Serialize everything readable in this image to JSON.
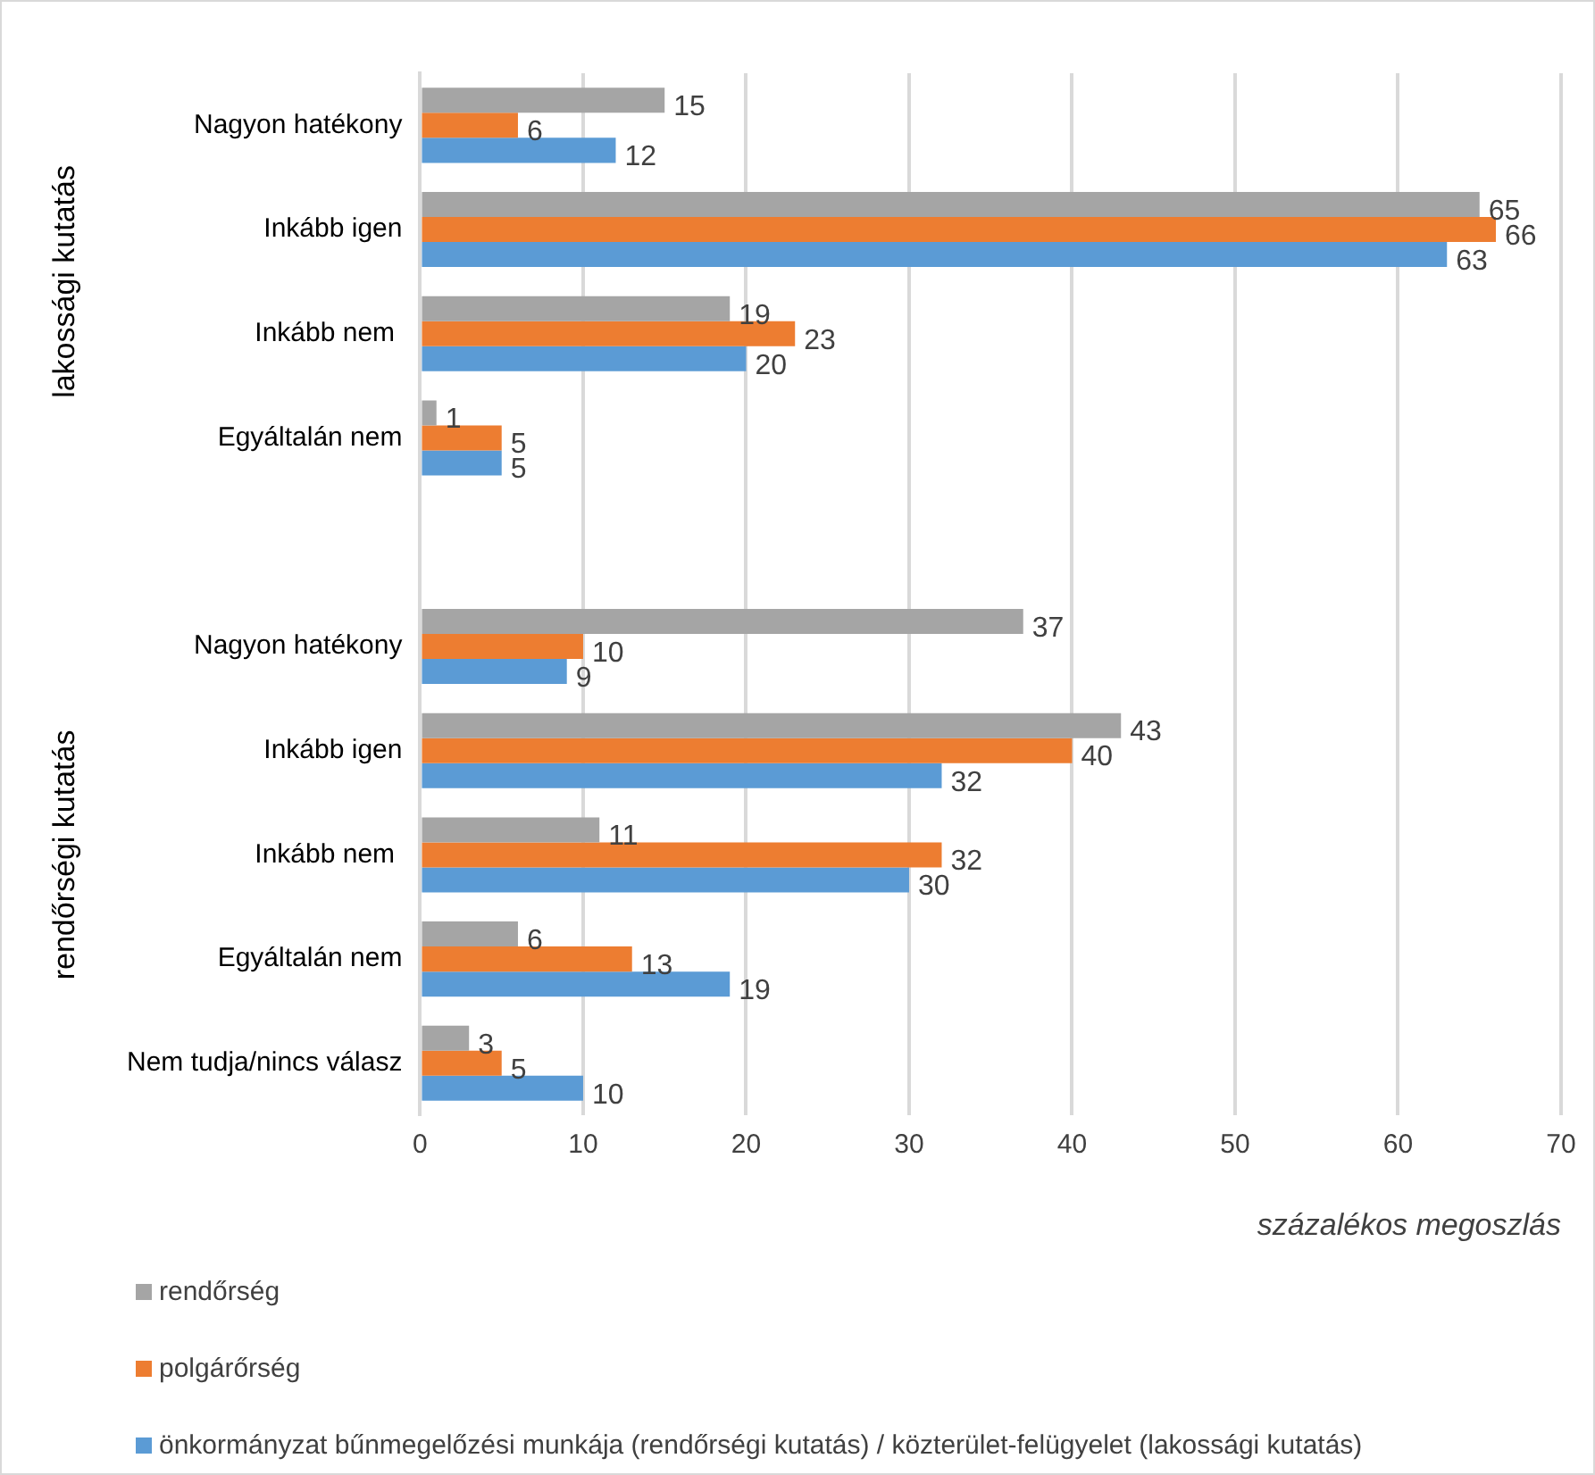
{
  "chart_data": {
    "type": "bar",
    "orientation": "horizontal",
    "categories": [
      "Nagyon hatékony",
      "Inkább igen",
      "Inkább nem ",
      "Egyáltalán nem",
      null,
      "Nagyon hatékony",
      "Inkább igen",
      "Inkább nem ",
      "Egyáltalán nem",
      "Nem tudja/nincs válasz"
    ],
    "series": [
      {
        "name": "rendőrség",
        "color": "#a5a5a5",
        "values": [
          15,
          65,
          19,
          1,
          null,
          37,
          43,
          11,
          6,
          3
        ]
      },
      {
        "name": "polgárőrség",
        "color": "#ed7d31",
        "values": [
          6,
          66,
          23,
          5,
          null,
          10,
          40,
          32,
          13,
          5
        ]
      },
      {
        "name": "önkormányzat bűnmegelőzési munkája (rendőrségi kutatás) / közterület-felügyelet (lakossági kutatás)",
        "color": "#5b9bd5",
        "values": [
          12,
          63,
          20,
          5,
          null,
          9,
          32,
          30,
          19,
          10
        ]
      }
    ],
    "xlim": [
      0,
      70
    ],
    "xticks": [
      0,
      10,
      20,
      30,
      40,
      50,
      60,
      70
    ],
    "xlabel": "százalékos megoszlás",
    "annotations": [
      "lakossági kutatás",
      "rendőrségi kutatás"
    ],
    "data_labels": true,
    "grid": "x",
    "legend": "bottom"
  }
}
